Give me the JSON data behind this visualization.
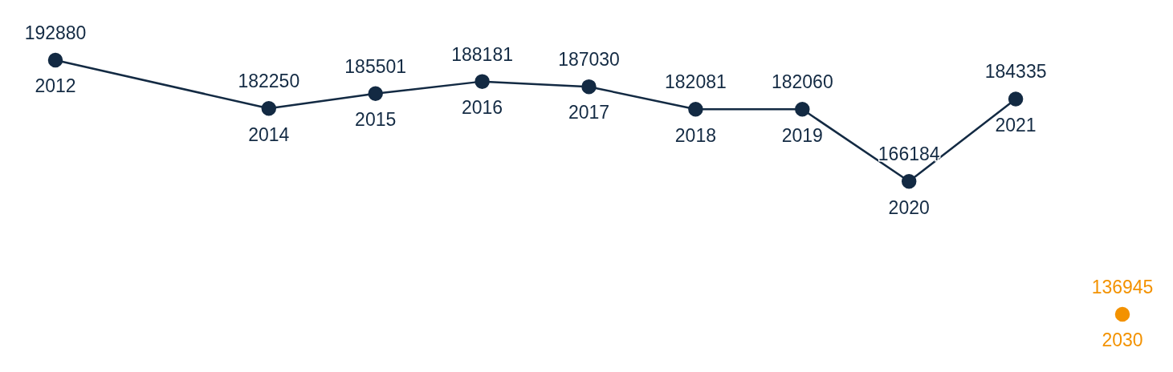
{
  "chart_data": {
    "type": "line",
    "categories": [
      "2012",
      null,
      "2014",
      "2015",
      "2016",
      "2017",
      "2018",
      "2019",
      "2020",
      "2021",
      "2030"
    ],
    "series": [
      {
        "color": "#132a43",
        "values": [
          192880,
          null,
          182250,
          185501,
          188181,
          187030,
          182081,
          182060,
          166184,
          184335,
          null
        ]
      },
      {
        "color": "#f39200",
        "values": [
          null,
          null,
          null,
          null,
          null,
          null,
          null,
          null,
          null,
          null,
          136945
        ]
      }
    ],
    "data_labels": true,
    "marker": "circle",
    "line_style": "solid",
    "grid": false,
    "legend": false
  }
}
